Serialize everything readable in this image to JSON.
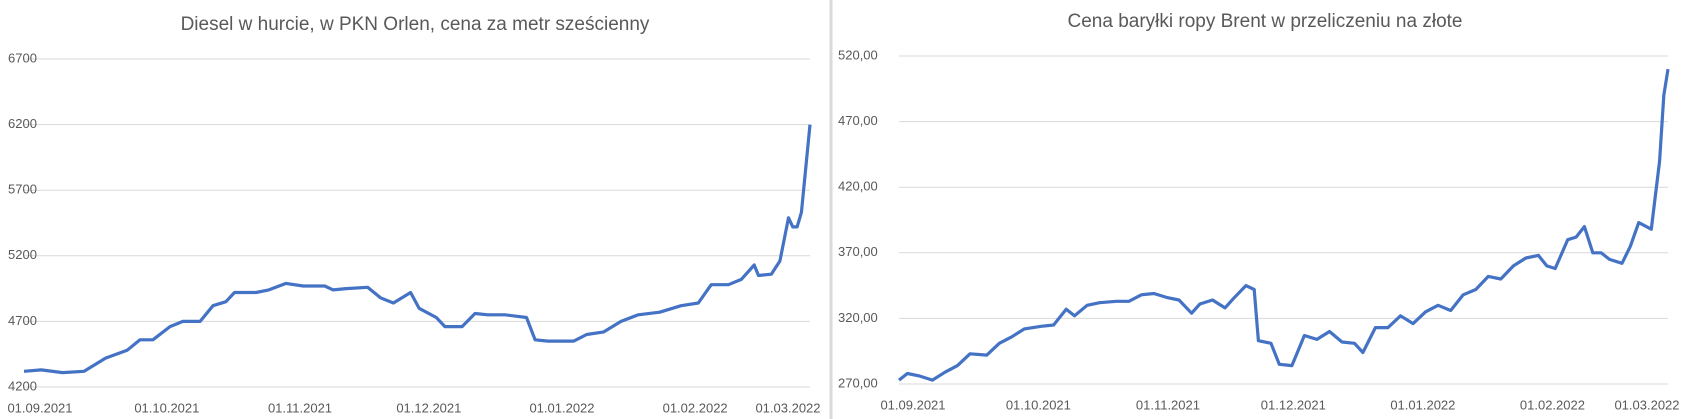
{
  "chart_data": [
    {
      "type": "line",
      "title": "Diesel w hurcie, w PKN Orlen, cena za metr sześcienny",
      "x": [
        "01.09.2021",
        "05.09.2021",
        "10.09.2021",
        "15.09.2021",
        "20.09.2021",
        "25.09.2021",
        "28.09.2021",
        "01.10.2021",
        "05.10.2021",
        "08.10.2021",
        "12.10.2021",
        "15.10.2021",
        "18.10.2021",
        "20.10.2021",
        "25.10.2021",
        "28.10.2021",
        "01.11.2021",
        "05.11.2021",
        "10.11.2021",
        "12.11.2021",
        "15.11.2021",
        "20.11.2021",
        "23.11.2021",
        "26.11.2021",
        "30.11.2021",
        "02.12.2021",
        "06.12.2021",
        "08.12.2021",
        "12.12.2021",
        "15.12.2021",
        "18.12.2021",
        "22.12.2021",
        "27.12.2021",
        "29.12.2021",
        "01.01.2022",
        "07.01.2022",
        "10.01.2022",
        "14.01.2022",
        "18.01.2022",
        "22.01.2022",
        "27.01.2022",
        "01.02.2022",
        "05.02.2022",
        "08.02.2022",
        "12.02.2022",
        "15.02.2022",
        "18.02.2022",
        "19.02.2022",
        "22.02.2022",
        "24.02.2022",
        "26.02.2022",
        "27.02.2022",
        "28.02.2022",
        "01.03.2022",
        "03.03.2022"
      ],
      "series": [
        {
          "color": "#4472c4",
          "values": [
            4320,
            4330,
            4310,
            4320,
            4420,
            4480,
            4560,
            4560,
            4660,
            4700,
            4700,
            4820,
            4850,
            4920,
            4920,
            4940,
            4990,
            4970,
            4970,
            4940,
            4950,
            4960,
            4880,
            4840,
            4920,
            4800,
            4730,
            4660,
            4660,
            4760,
            4750,
            4750,
            4730,
            4560,
            4550,
            4550,
            4600,
            4620,
            4700,
            4750,
            4770,
            4820,
            4840,
            4980,
            4980,
            5020,
            5130,
            5050,
            5060,
            5160,
            5490,
            5420,
            5420,
            5530,
            6200
          ]
        }
      ],
      "xlim": [
        "01.09.2021",
        "03.03.2022"
      ],
      "xticks": [
        "01.09.2021",
        "01.10.2021",
        "01.11.2021",
        "01.12.2021",
        "01.01.2022",
        "01.02.2022",
        "01.03.2022"
      ],
      "ylim": [
        4200,
        6700
      ],
      "yticks": [
        4200,
        4700,
        5200,
        5700,
        6200,
        6700
      ],
      "grid": true
    },
    {
      "type": "line",
      "title": "Cena baryłki ropy Brent w przeliczeniu na złote",
      "x": [
        "01.09.2021",
        "03.09.2021",
        "06.09.2021",
        "09.09.2021",
        "12.09.2021",
        "15.09.2021",
        "18.09.2021",
        "22.09.2021",
        "25.09.2021",
        "28.09.2021",
        "01.10.2021",
        "05.10.2021",
        "08.10.2021",
        "11.10.2021",
        "13.10.2021",
        "16.10.2021",
        "19.10.2021",
        "23.10.2021",
        "26.10.2021",
        "29.10.2021",
        "01.11.2021",
        "04.11.2021",
        "07.11.2021",
        "10.11.2021",
        "12.11.2021",
        "15.11.2021",
        "18.11.2021",
        "20.11.2021",
        "23.11.2021",
        "25.11.2021",
        "26.11.2021",
        "29.11.2021",
        "01.12.2021",
        "04.12.2021",
        "07.12.2021",
        "10.12.2021",
        "13.12.2021",
        "16.12.2021",
        "19.12.2021",
        "21.12.2021",
        "24.12.2021",
        "27.12.2021",
        "30.12.2021",
        "02.01.2022",
        "05.01.2022",
        "08.01.2022",
        "11.01.2022",
        "14.01.2022",
        "17.01.2022",
        "20.01.2022",
        "23.01.2022",
        "26.01.2022",
        "29.01.2022",
        "01.02.2022",
        "03.02.2022",
        "05.02.2022",
        "08.02.2022",
        "10.02.2022",
        "12.02.2022",
        "14.02.2022",
        "16.02.2022",
        "18.02.2022",
        "21.02.2022",
        "23.02.2022",
        "25.02.2022",
        "28.02.2022",
        "02.03.2022",
        "03.03.2022",
        "04.03.2022"
      ],
      "series": [
        {
          "color": "#4472c4",
          "values": [
            273,
            278,
            276,
            273,
            279,
            284,
            293,
            292,
            301,
            306,
            312,
            314,
            315,
            327,
            322,
            330,
            332,
            333,
            333,
            338,
            339,
            336,
            334,
            324,
            331,
            334,
            328,
            335,
            345,
            342,
            303,
            301,
            285,
            284,
            307,
            304,
            310,
            302,
            301,
            294,
            313,
            313,
            322,
            316,
            325,
            330,
            326,
            338,
            342,
            352,
            350,
            360,
            366,
            368,
            360,
            358,
            380,
            382,
            390,
            370,
            370,
            365,
            362,
            375,
            393,
            388,
            440,
            490,
            510
          ]
        }
      ],
      "xlim": [
        "01.09.2021",
        "04.03.2022"
      ],
      "xticks": [
        "01.09.2021",
        "01.10.2021",
        "01.11.2021",
        "01.12.2021",
        "01.01.2022",
        "01.02.2022",
        "01.03.2022"
      ],
      "ylim": [
        270,
        520
      ],
      "yticks": [
        {
          "value": 270,
          "label": "270,00"
        },
        {
          "value": 320,
          "label": "320,00"
        },
        {
          "value": 370,
          "label": "370,00"
        },
        {
          "value": 420,
          "label": "420,00"
        },
        {
          "value": 470,
          "label": "470,00"
        },
        {
          "value": 520,
          "label": "520,00"
        }
      ],
      "grid": true
    }
  ]
}
